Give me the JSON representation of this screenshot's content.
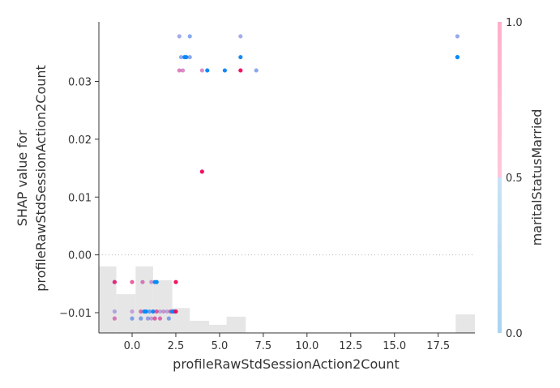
{
  "chart_data": {
    "type": "scatter",
    "title": "",
    "xlabel": "profileRawStdSessionAction2Count",
    "ylabel_lines": [
      "SHAP value for",
      "profileRawStdSessionAction2Count"
    ],
    "xlim": [
      -1.9,
      19.6
    ],
    "ylim": [
      -0.0135,
      0.0403
    ],
    "xticks": [
      0.0,
      2.5,
      5.0,
      7.5,
      10.0,
      12.5,
      15.0,
      17.5
    ],
    "xtick_labels": [
      "0.0",
      "2.5",
      "5.0",
      "7.5",
      "10.0",
      "12.5",
      "15.0",
      "17.5"
    ],
    "yticks": [
      -0.01,
      0.0,
      0.01,
      0.02,
      0.03
    ],
    "ytick_labels": [
      "−0.01",
      "0.00",
      "0.01",
      "0.02",
      "0.03"
    ],
    "zero_line": true,
    "grid": false,
    "histogram": {
      "bins": [
        {
          "x0": -1.9,
          "x1": -0.9,
          "height": 0.0115
        },
        {
          "x0": -0.9,
          "x1": 0.2,
          "height": 0.0067
        },
        {
          "x0": 0.2,
          "x1": 1.2,
          "height": 0.0115
        },
        {
          "x0": 1.2,
          "x1": 2.3,
          "height": 0.0091
        },
        {
          "x0": 2.3,
          "x1": 3.3,
          "height": 0.0043
        },
        {
          "x0": 3.3,
          "x1": 4.4,
          "height": 0.0021
        },
        {
          "x0": 4.4,
          "x1": 5.4,
          "height": 0.0014
        },
        {
          "x0": 5.4,
          "x1": 6.5,
          "height": 0.0028
        },
        {
          "x0": 18.5,
          "x1": 19.6,
          "height": 0.0032
        }
      ]
    },
    "colorbar": {
      "label": "maritalStatusMarried",
      "ticks": [
        0.0,
        0.5,
        1.0
      ],
      "tick_labels": [
        "0.0",
        "0.5",
        "1.0"
      ],
      "low_color": "#a9d4f0",
      "high_color": "#ffb0c9"
    },
    "points": [
      {
        "x": 2.7,
        "y": 0.0378,
        "c": 0.3
      },
      {
        "x": 3.3,
        "y": 0.0378,
        "c": 0.2
      },
      {
        "x": 6.2,
        "y": 0.0378,
        "c": 0.3
      },
      {
        "x": 18.6,
        "y": 0.0378,
        "c": 0.25
      },
      {
        "x": 2.8,
        "y": 0.0342,
        "c": 0.25
      },
      {
        "x": 3.0,
        "y": 0.0342,
        "c": 0.0
      },
      {
        "x": 3.1,
        "y": 0.0342,
        "c": 0.05
      },
      {
        "x": 3.3,
        "y": 0.0342,
        "c": 0.2
      },
      {
        "x": 6.2,
        "y": 0.0342,
        "c": 0.05
      },
      {
        "x": 18.6,
        "y": 0.0342,
        "c": 0.05
      },
      {
        "x": 18.6,
        "y": 0.0342,
        "c": 0.0
      },
      {
        "x": 2.7,
        "y": 0.0319,
        "c": 0.75
      },
      {
        "x": 2.9,
        "y": 0.0319,
        "c": 0.7
      },
      {
        "x": 4.0,
        "y": 0.0319,
        "c": 0.7
      },
      {
        "x": 4.3,
        "y": 0.0319,
        "c": 0.0
      },
      {
        "x": 5.3,
        "y": 0.0319,
        "c": 0.05
      },
      {
        "x": 6.2,
        "y": 0.0319,
        "c": 0.95
      },
      {
        "x": 7.1,
        "y": 0.0319,
        "c": 0.2
      },
      {
        "x": 4.0,
        "y": 0.0144,
        "c": 0.95
      },
      {
        "x": -1.0,
        "y": -0.0047,
        "c": 0.9
      },
      {
        "x": -1.0,
        "y": -0.0047,
        "c": 0.85
      },
      {
        "x": 0.0,
        "y": -0.0047,
        "c": 0.9
      },
      {
        "x": 0.6,
        "y": -0.0047,
        "c": 0.75
      },
      {
        "x": 1.1,
        "y": -0.0047,
        "c": 0.6
      },
      {
        "x": 1.3,
        "y": -0.0047,
        "c": 0.05
      },
      {
        "x": 1.4,
        "y": -0.0047,
        "c": 0.0
      },
      {
        "x": 2.5,
        "y": -0.0047,
        "c": 0.95
      },
      {
        "x": -1.0,
        "y": -0.0098,
        "c": 0.4
      },
      {
        "x": 0.0,
        "y": -0.0098,
        "c": 0.55
      },
      {
        "x": 0.5,
        "y": -0.0098,
        "c": 0.8
      },
      {
        "x": 0.7,
        "y": -0.0098,
        "c": 0.05
      },
      {
        "x": 0.8,
        "y": -0.0098,
        "c": 0.0
      },
      {
        "x": 1.0,
        "y": -0.0098,
        "c": 0.1
      },
      {
        "x": 1.2,
        "y": -0.0098,
        "c": 0.05
      },
      {
        "x": 1.4,
        "y": -0.0098,
        "c": 0.9
      },
      {
        "x": 1.6,
        "y": -0.0098,
        "c": 0.45
      },
      {
        "x": 1.8,
        "y": -0.0098,
        "c": 0.6
      },
      {
        "x": 2.0,
        "y": -0.0098,
        "c": 0.45
      },
      {
        "x": 2.2,
        "y": -0.0098,
        "c": 0.9
      },
      {
        "x": 2.3,
        "y": -0.0098,
        "c": 0.0
      },
      {
        "x": 2.4,
        "y": -0.0098,
        "c": 0.05
      },
      {
        "x": 2.5,
        "y": -0.0098,
        "c": 0.95
      },
      {
        "x": -1.0,
        "y": -0.011,
        "c": 0.75
      },
      {
        "x": 0.0,
        "y": -0.011,
        "c": 0.2
      },
      {
        "x": 0.5,
        "y": -0.011,
        "c": 0.2
      },
      {
        "x": 0.9,
        "y": -0.011,
        "c": 0.3
      },
      {
        "x": 1.1,
        "y": -0.011,
        "c": 0.55
      },
      {
        "x": 1.3,
        "y": -0.011,
        "c": 0.85
      },
      {
        "x": 1.6,
        "y": -0.011,
        "c": 0.8
      },
      {
        "x": 2.1,
        "y": -0.011,
        "c": 0.2
      }
    ]
  }
}
